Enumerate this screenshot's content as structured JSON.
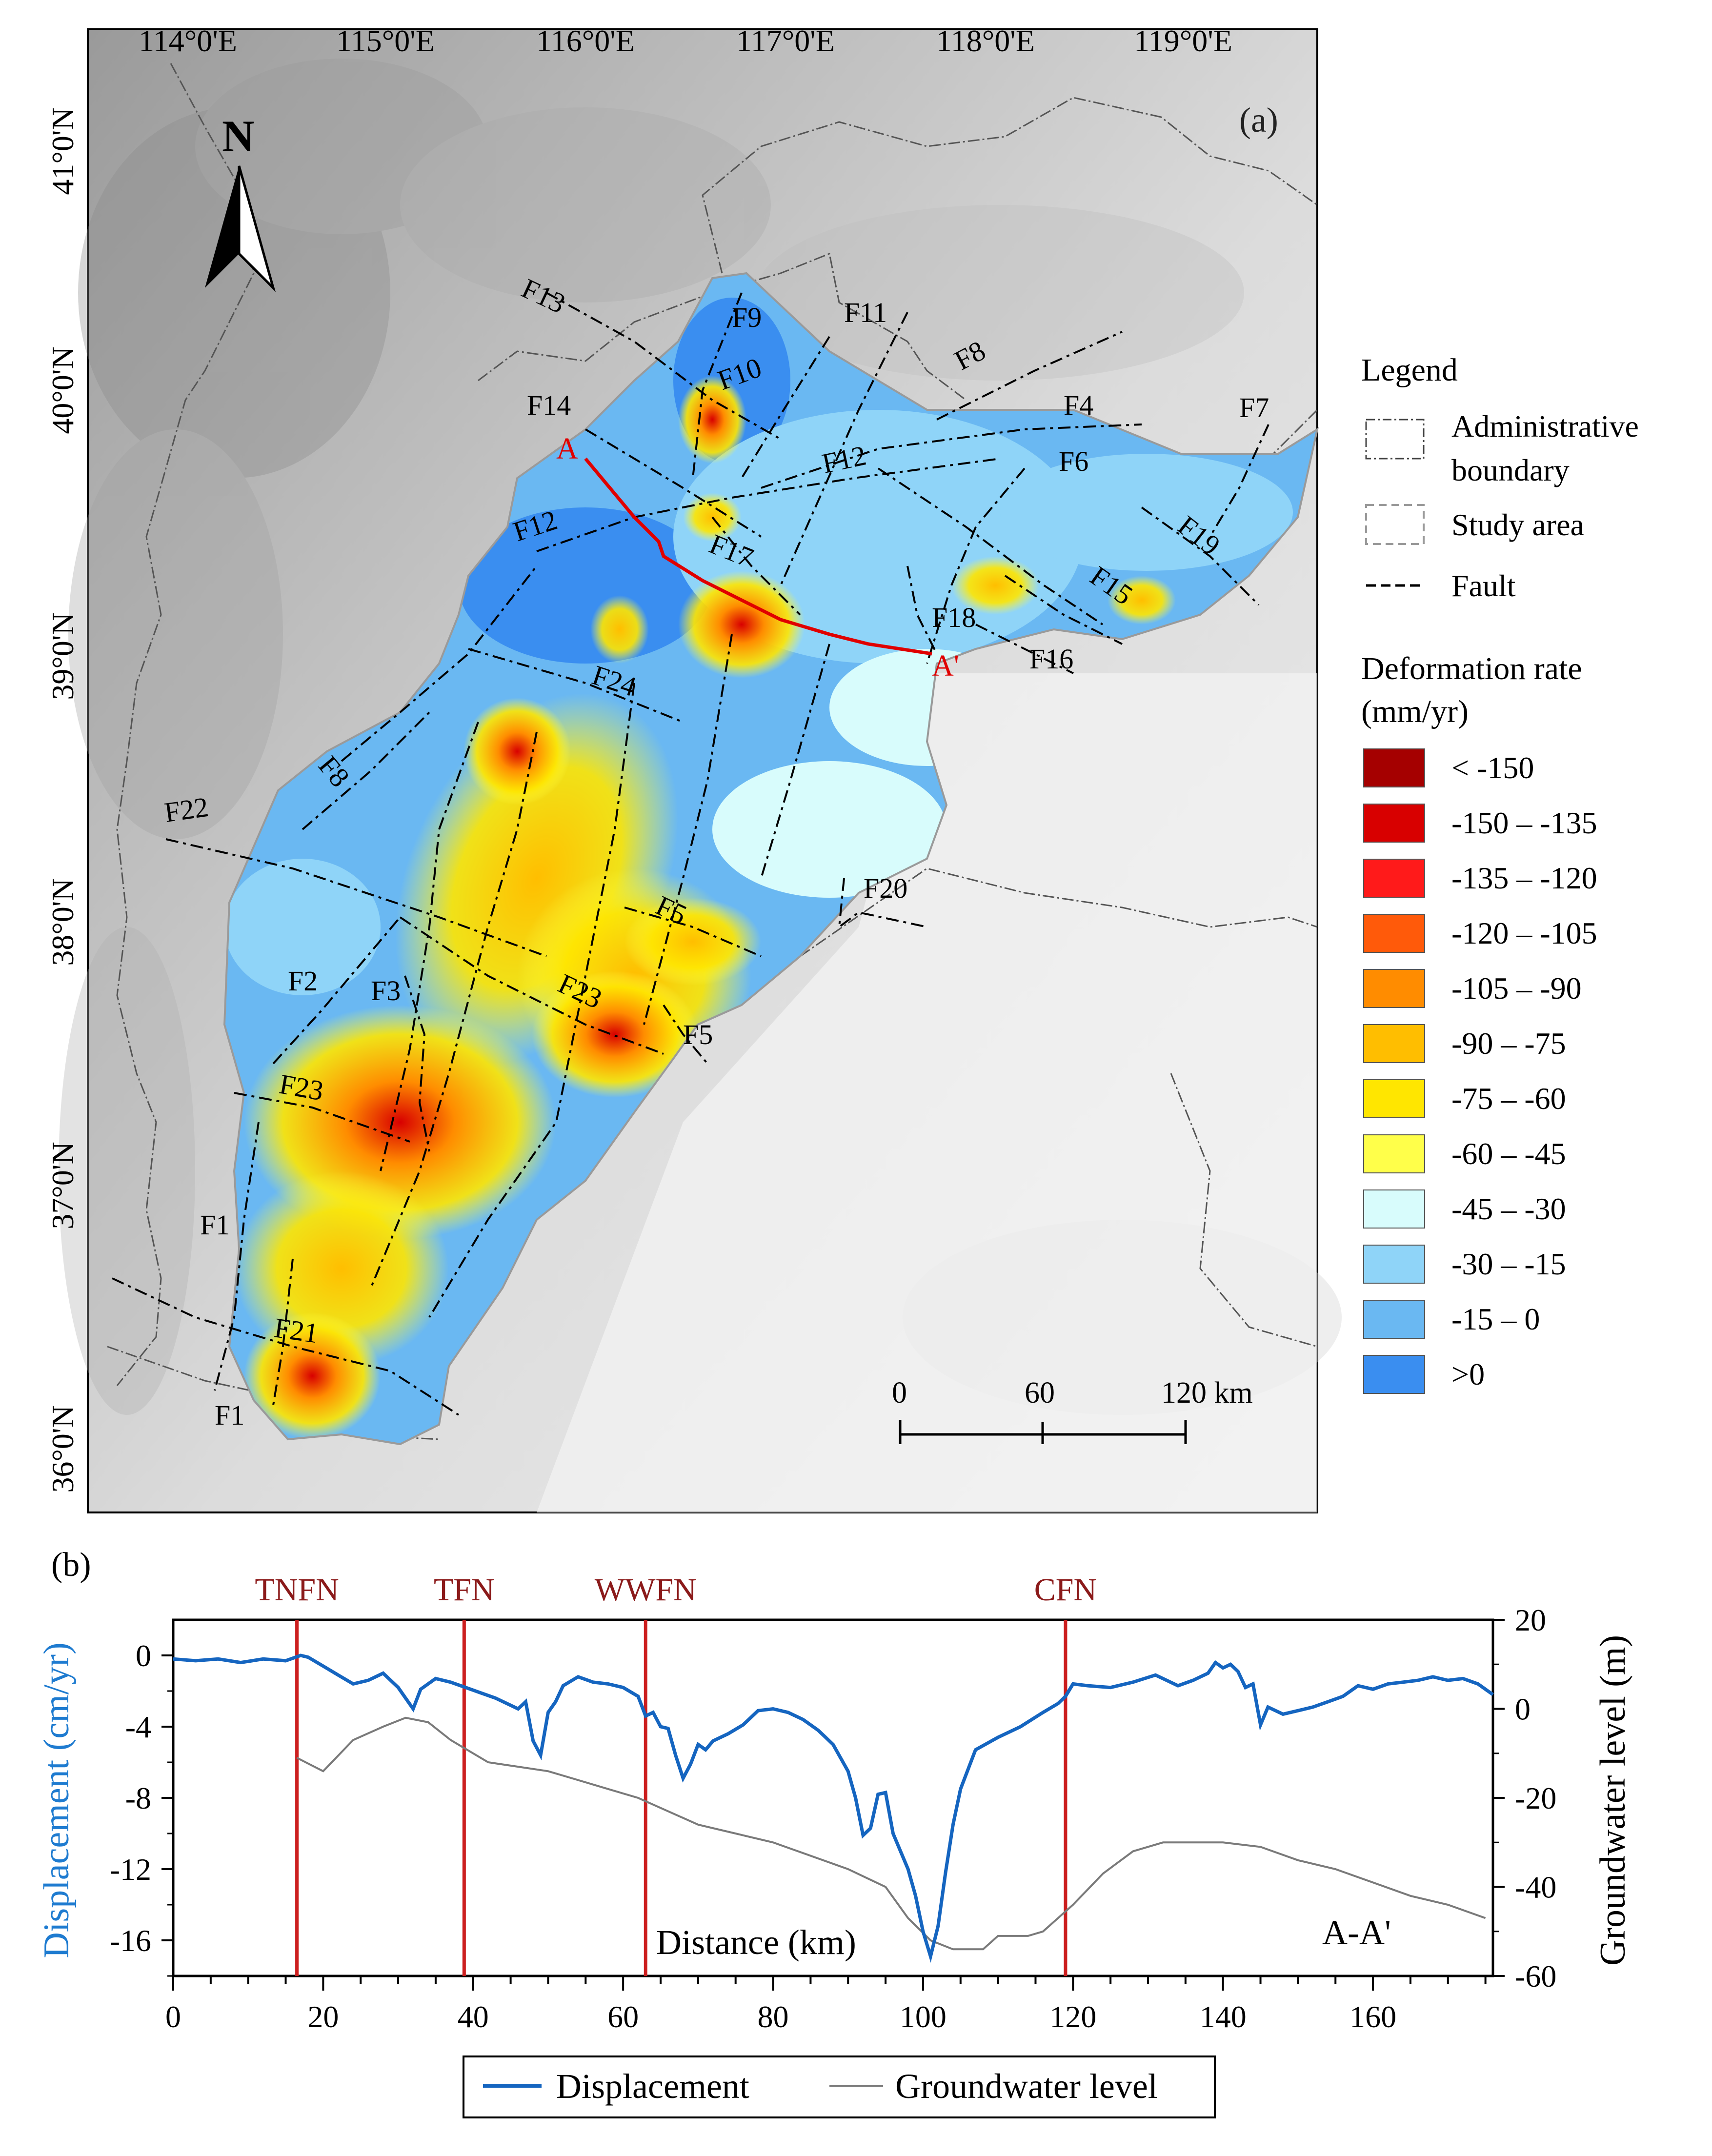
{
  "panel_a": {
    "label": "(a)",
    "north": "N",
    "lon_ticks": [
      "114°0'E",
      "115°0'E",
      "116°0'E",
      "117°0'E",
      "118°0'E",
      "119°0'E"
    ],
    "lat_ticks": [
      "41°0'N",
      "40°0'N",
      "39°0'N",
      "38°0'N",
      "37°0'N",
      "36°0'N"
    ],
    "faults": [
      "F13",
      "F9",
      "F11",
      "F10",
      "F8",
      "F4",
      "F7",
      "F14",
      "F12",
      "F6",
      "F12",
      "F17",
      "F19",
      "F15",
      "F18",
      "F16",
      "F24",
      "F8",
      "F22",
      "F20",
      "F5",
      "F2",
      "F3",
      "F23",
      "F5",
      "F23",
      "F1",
      "F21",
      "F1"
    ],
    "profile": {
      "start": "A",
      "end": "A'"
    },
    "scale": {
      "ticks": [
        "0",
        "60",
        "120 km"
      ]
    },
    "legend": {
      "title": "Legend",
      "admin": "Administrative\nboundary",
      "admin_l1": "Administrative",
      "admin_l2": "boundary",
      "study": "Study area",
      "fault": "Fault",
      "rate_title_l1": "Deformation rate",
      "rate_title_l2": "(mm/yr)",
      "classes": [
        {
          "label": "< -150",
          "color": "#a50000"
        },
        {
          "label": "-150 – -135",
          "color": "#d80000"
        },
        {
          "label": "-135 – -120",
          "color": "#ff1a1a"
        },
        {
          "label": "-120 – -105",
          "color": "#ff5a0a"
        },
        {
          "label": "-105 – -90",
          "color": "#ff8c00"
        },
        {
          "label": "-90 – -75",
          "color": "#ffbe00"
        },
        {
          "label": "-75 – -60",
          "color": "#ffe600"
        },
        {
          "label": "-60 – -45",
          "color": "#ffff4a"
        },
        {
          "label": "-45 – -30",
          "color": "#d8fcfc"
        },
        {
          "label": "-30 – -15",
          "color": "#8fd4f8"
        },
        {
          "label": "-15 – 0",
          "color": "#6ab8f2"
        },
        {
          "label": ">0",
          "color": "#3a8ef0"
        }
      ]
    }
  },
  "chart_data": {
    "type": "line",
    "panel_label": "(b)",
    "xlabel": "Distance (km)",
    "ylabel_left": "Displacement (cm/yr)",
    "ylabel_right": "Groundwater level (m)",
    "annotation": "A-A'",
    "xlim": [
      0,
      176
    ],
    "ylim_left": [
      -18,
      2
    ],
    "ylim_right": [
      -60,
      20
    ],
    "x_ticks": [
      "0",
      "20",
      "40",
      "60",
      "80",
      "100",
      "120",
      "140",
      "160"
    ],
    "y_left_ticks": [
      "0",
      "-4",
      "-8",
      "-12",
      "-16"
    ],
    "y_right_ticks": [
      "20",
      "0",
      "-20",
      "-40",
      "-60"
    ],
    "fault_lines": [
      {
        "name": "TNFN",
        "x": 16.5
      },
      {
        "name": "TFN",
        "x": 38.8
      },
      {
        "name": "WWFN",
        "x": 63.0
      },
      {
        "name": "CFN",
        "x": 119.0
      }
    ],
    "series": [
      {
        "name": "Displacement",
        "color": "#1565c0",
        "axis": "left",
        "x": [
          0,
          3,
          6,
          9,
          12,
          15,
          17,
          18,
          20,
          22,
          24,
          26,
          28,
          30,
          31,
          32,
          33,
          35,
          37,
          39,
          41,
          43,
          45,
          46,
          47,
          48,
          49,
          50,
          51,
          52,
          54,
          56,
          58,
          60,
          62,
          63,
          64,
          65,
          66,
          67,
          68,
          69,
          70,
          71,
          72,
          74,
          76,
          78,
          80,
          82,
          84,
          86,
          88,
          90,
          91,
          92,
          93,
          94,
          95,
          96,
          97,
          98,
          99,
          100,
          101,
          102,
          103,
          104,
          105,
          107,
          110,
          113,
          116,
          118,
          119,
          120,
          122,
          125,
          128,
          131,
          134,
          136,
          138,
          139,
          140,
          141,
          142,
          143,
          144,
          145,
          146,
          148,
          150,
          152,
          154,
          156,
          158,
          160,
          162,
          164,
          166,
          168,
          170,
          172,
          174,
          176
        ],
        "y": [
          -0.2,
          -0.3,
          -0.2,
          -0.4,
          -0.2,
          -0.3,
          0.0,
          -0.1,
          -0.6,
          -1.1,
          -1.6,
          -1.4,
          -1.0,
          -1.8,
          -2.4,
          -3.0,
          -1.9,
          -1.3,
          -1.5,
          -1.8,
          -2.1,
          -2.4,
          -2.8,
          -3.0,
          -2.6,
          -4.8,
          -5.6,
          -3.2,
          -2.6,
          -1.7,
          -1.2,
          -1.5,
          -1.6,
          -1.8,
          -2.3,
          -3.4,
          -3.2,
          -4.0,
          -4.1,
          -5.6,
          -6.9,
          -6.1,
          -5.0,
          -5.3,
          -4.8,
          -4.4,
          -3.9,
          -3.1,
          -3.0,
          -3.2,
          -3.6,
          -4.2,
          -5.0,
          -6.5,
          -8.0,
          -10.1,
          -9.7,
          -7.8,
          -7.7,
          -10.0,
          -11.0,
          -12.0,
          -13.5,
          -15.5,
          -16.9,
          -15.2,
          -12.2,
          -9.5,
          -7.5,
          -5.3,
          -4.6,
          -4.0,
          -3.2,
          -2.7,
          -2.3,
          -1.6,
          -1.7,
          -1.8,
          -1.5,
          -1.1,
          -1.7,
          -1.4,
          -1.0,
          -0.4,
          -0.7,
          -0.5,
          -0.9,
          -1.8,
          -1.6,
          -3.9,
          -2.9,
          -3.3,
          -3.1,
          -2.9,
          -2.6,
          -2.3,
          -1.7,
          -1.9,
          -1.6,
          -1.5,
          -1.4,
          -1.2,
          -1.4,
          -1.3,
          -1.6,
          -2.2
        ]
      },
      {
        "name": "Groundwater level",
        "color": "#7a7a7a",
        "axis": "right",
        "x": [
          16.5,
          20,
          24,
          28,
          31,
          34,
          37,
          39,
          42,
          46,
          50,
          54,
          58,
          62,
          66,
          70,
          75,
          80,
          85,
          90,
          95,
          98,
          101,
          104,
          106,
          108,
          110,
          114,
          116,
          118,
          120,
          124,
          128,
          132,
          136,
          140,
          145,
          150,
          155,
          160,
          165,
          170,
          175
        ],
        "y": [
          -11,
          -14,
          -7,
          -4,
          -2,
          -3,
          -7,
          -9,
          -12,
          -13,
          -14,
          -16,
          -18,
          -20,
          -23,
          -26,
          -28,
          -30,
          -33,
          -36,
          -40,
          -47,
          -52,
          -54,
          -54,
          -54,
          -51,
          -51,
          -50,
          -47,
          -44,
          -37,
          -32,
          -30,
          -30,
          -30,
          -31,
          -34,
          -36,
          -39,
          -42,
          -44,
          -47
        ]
      }
    ],
    "legend": [
      "Displacement",
      "Groundwater level"
    ]
  }
}
